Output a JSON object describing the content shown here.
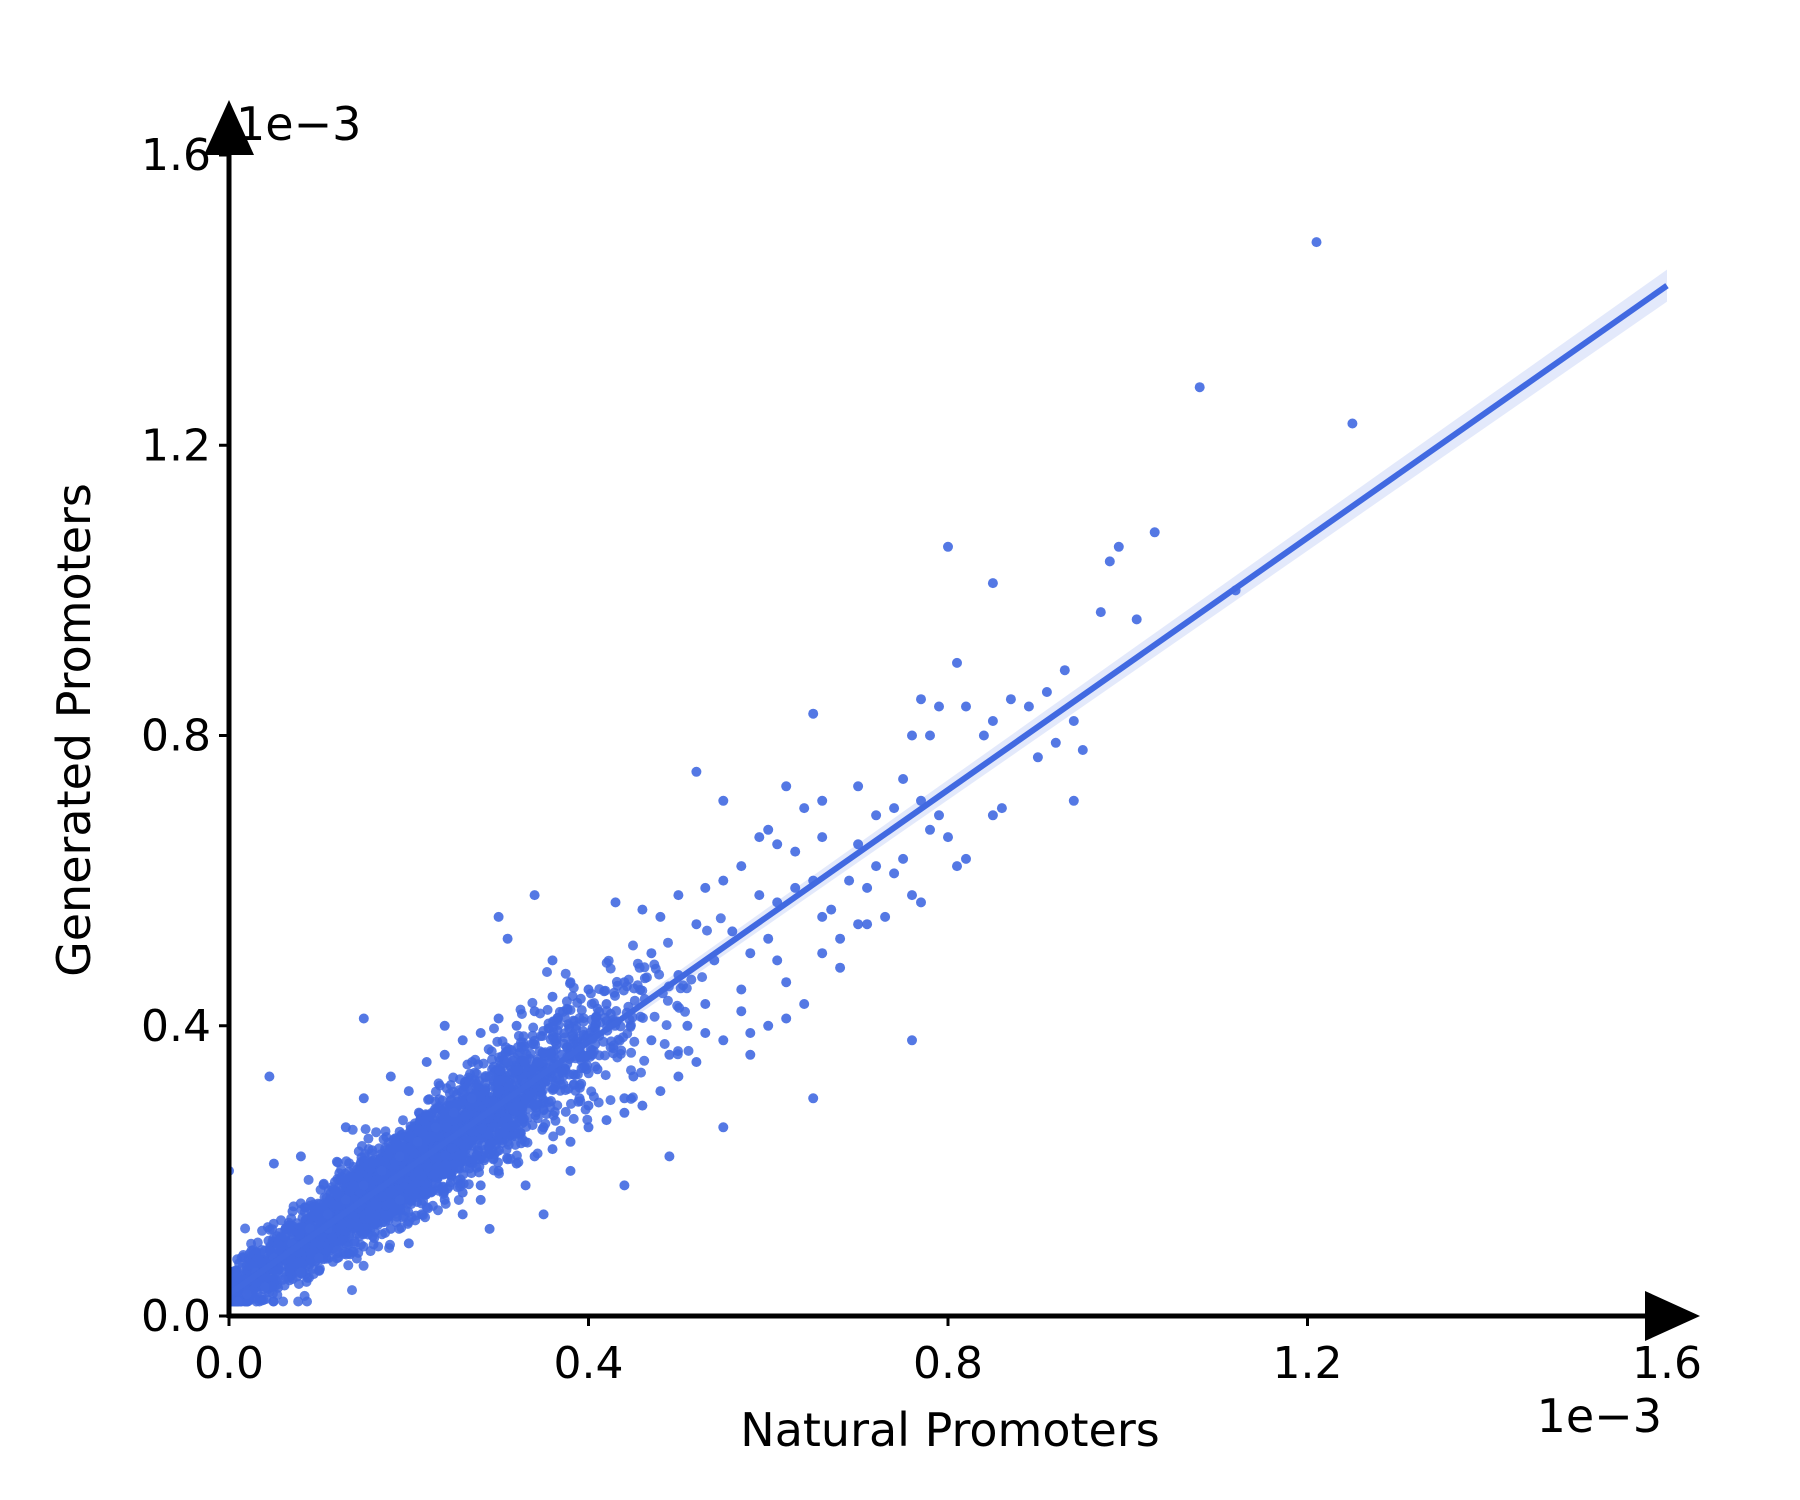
{
  "chart_data": {
    "type": "scatter",
    "title": "",
    "xlabel": "Natural Promoters",
    "ylabel": "Generated Promoters",
    "x_offset_label": "1e−3",
    "y_offset_label": "1e−3",
    "xlim": [
      0.0,
      1.6
    ],
    "ylim": [
      0.0,
      1.6
    ],
    "xticks": [
      0.0,
      0.4,
      0.8,
      1.2,
      1.6
    ],
    "yticks": [
      0.0,
      0.4,
      0.8,
      1.2,
      1.6
    ],
    "xtick_labels": [
      "0.0",
      "0.4",
      "0.8",
      "1.2",
      "1.6"
    ],
    "ytick_labels": [
      "0.0",
      "0.4",
      "0.8",
      "1.2",
      "1.6"
    ],
    "grid": false,
    "marker_color": "#4169E1",
    "fit_line": {
      "x": [
        0.0,
        1.6
      ],
      "y": [
        0.03,
        1.42
      ]
    },
    "points": [
      [
        1.21,
        1.48
      ],
      [
        1.08,
        1.28
      ],
      [
        1.25,
        1.23
      ],
      [
        1.12,
        1.0
      ],
      [
        1.03,
        1.08
      ],
      [
        0.8,
        1.06
      ],
      [
        0.99,
        1.06
      ],
      [
        0.98,
        1.04
      ],
      [
        0.85,
        1.01
      ],
      [
        0.97,
        0.97
      ],
      [
        1.01,
        0.96
      ],
      [
        0.81,
        0.9
      ],
      [
        0.93,
        0.89
      ],
      [
        0.91,
        0.86
      ],
      [
        0.89,
        0.84
      ],
      [
        0.87,
        0.85
      ],
      [
        0.85,
        0.82
      ],
      [
        0.94,
        0.82
      ],
      [
        0.84,
        0.8
      ],
      [
        0.92,
        0.79
      ],
      [
        0.9,
        0.77
      ],
      [
        0.95,
        0.78
      ],
      [
        0.94,
        0.71
      ],
      [
        0.77,
        0.85
      ],
      [
        0.79,
        0.84
      ],
      [
        0.82,
        0.84
      ],
      [
        0.78,
        0.8
      ],
      [
        0.76,
        0.8
      ],
      [
        0.65,
        0.83
      ],
      [
        0.52,
        0.75
      ],
      [
        0.55,
        0.71
      ],
      [
        0.62,
        0.73
      ],
      [
        0.64,
        0.7
      ],
      [
        0.66,
        0.71
      ],
      [
        0.7,
        0.73
      ],
      [
        0.72,
        0.69
      ],
      [
        0.74,
        0.7
      ],
      [
        0.79,
        0.69
      ],
      [
        0.75,
        0.74
      ],
      [
        0.77,
        0.71
      ],
      [
        0.86,
        0.7
      ],
      [
        0.85,
        0.69
      ],
      [
        0.6,
        0.67
      ],
      [
        0.59,
        0.66
      ],
      [
        0.61,
        0.65
      ],
      [
        0.63,
        0.64
      ],
      [
        0.66,
        0.66
      ],
      [
        0.7,
        0.65
      ],
      [
        0.78,
        0.67
      ],
      [
        0.8,
        0.66
      ],
      [
        0.72,
        0.62
      ],
      [
        0.75,
        0.63
      ],
      [
        0.81,
        0.62
      ],
      [
        0.82,
        0.63
      ],
      [
        0.57,
        0.62
      ],
      [
        0.55,
        0.6
      ],
      [
        0.53,
        0.59
      ],
      [
        0.5,
        0.58
      ],
      [
        0.46,
        0.56
      ],
      [
        0.48,
        0.55
      ],
      [
        0.59,
        0.58
      ],
      [
        0.61,
        0.57
      ],
      [
        0.63,
        0.59
      ],
      [
        0.65,
        0.6
      ],
      [
        0.67,
        0.56
      ],
      [
        0.69,
        0.6
      ],
      [
        0.74,
        0.61
      ],
      [
        0.76,
        0.58
      ],
      [
        0.77,
        0.57
      ],
      [
        0.7,
        0.54
      ],
      [
        0.71,
        0.54
      ],
      [
        0.73,
        0.55
      ],
      [
        0.68,
        0.52
      ],
      [
        0.66,
        0.5
      ],
      [
        0.6,
        0.52
      ],
      [
        0.58,
        0.5
      ],
      [
        0.56,
        0.53
      ],
      [
        0.52,
        0.54
      ],
      [
        0.54,
        0.49
      ],
      [
        0.5,
        0.47
      ],
      [
        0.47,
        0.5
      ],
      [
        0.44,
        0.46
      ],
      [
        0.42,
        0.43
      ],
      [
        0.4,
        0.45
      ],
      [
        0.38,
        0.46
      ],
      [
        0.36,
        0.49
      ],
      [
        0.34,
        0.58
      ],
      [
        0.43,
        0.57
      ],
      [
        0.3,
        0.55
      ],
      [
        0.31,
        0.52
      ],
      [
        0.62,
        0.46
      ],
      [
        0.64,
        0.43
      ],
      [
        0.6,
        0.4
      ],
      [
        0.57,
        0.42
      ],
      [
        0.55,
        0.38
      ],
      [
        0.58,
        0.36
      ],
      [
        0.52,
        0.35
      ],
      [
        0.5,
        0.33
      ],
      [
        0.48,
        0.31
      ],
      [
        0.46,
        0.29
      ],
      [
        0.44,
        0.28
      ],
      [
        0.42,
        0.27
      ],
      [
        0.4,
        0.26
      ],
      [
        0.38,
        0.24
      ],
      [
        0.36,
        0.23
      ],
      [
        0.34,
        0.22
      ],
      [
        0.32,
        0.21
      ],
      [
        0.3,
        0.2
      ],
      [
        0.28,
        0.18
      ],
      [
        0.26,
        0.17
      ],
      [
        0.24,
        0.16
      ],
      [
        0.22,
        0.15
      ],
      [
        0.2,
        0.13
      ],
      [
        0.18,
        0.12
      ],
      [
        0.16,
        0.11
      ],
      [
        0.14,
        0.1
      ],
      [
        0.12,
        0.09
      ],
      [
        0.1,
        0.08
      ],
      [
        0.08,
        0.06
      ],
      [
        0.06,
        0.05
      ],
      [
        0.04,
        0.04
      ],
      [
        0.02,
        0.03
      ],
      [
        0.01,
        0.02
      ],
      [
        0.045,
        0.33
      ],
      [
        0.0,
        0.2
      ],
      [
        0.05,
        0.21
      ],
      [
        0.08,
        0.22
      ],
      [
        0.13,
        0.26
      ],
      [
        0.15,
        0.3
      ],
      [
        0.18,
        0.33
      ],
      [
        0.2,
        0.31
      ],
      [
        0.22,
        0.35
      ],
      [
        0.24,
        0.36
      ],
      [
        0.26,
        0.38
      ],
      [
        0.28,
        0.39
      ],
      [
        0.3,
        0.41
      ],
      [
        0.32,
        0.4
      ],
      [
        0.34,
        0.42
      ],
      [
        0.36,
        0.44
      ],
      [
        0.15,
        0.41
      ],
      [
        0.24,
        0.4
      ],
      [
        0.47,
        0.38
      ],
      [
        0.51,
        0.4
      ],
      [
        0.53,
        0.43
      ],
      [
        0.65,
        0.3
      ],
      [
        0.76,
        0.38
      ],
      [
        0.55,
        0.26
      ],
      [
        0.49,
        0.22
      ],
      [
        0.44,
        0.18
      ],
      [
        0.35,
        0.14
      ],
      [
        0.29,
        0.12
      ],
      [
        0.2,
        0.1
      ],
      [
        0.44,
        0.3
      ],
      [
        0.41,
        0.34
      ],
      [
        0.39,
        0.3
      ],
      [
        0.37,
        0.36
      ],
      [
        0.33,
        0.32
      ],
      [
        0.31,
        0.35
      ],
      [
        0.29,
        0.33
      ],
      [
        0.27,
        0.3
      ],
      [
        0.25,
        0.28
      ],
      [
        0.23,
        0.26
      ],
      [
        0.21,
        0.24
      ],
      [
        0.19,
        0.22
      ],
      [
        0.17,
        0.2
      ],
      [
        0.15,
        0.18
      ],
      [
        0.13,
        0.16
      ],
      [
        0.11,
        0.14
      ],
      [
        0.09,
        0.12
      ],
      [
        0.07,
        0.1
      ],
      [
        0.05,
        0.08
      ],
      [
        0.03,
        0.06
      ],
      [
        0.28,
        0.16
      ],
      [
        0.33,
        0.18
      ],
      [
        0.38,
        0.2
      ],
      [
        0.26,
        0.14
      ],
      [
        0.19,
        0.16
      ],
      [
        0.11,
        0.12
      ],
      [
        0.35,
        0.26
      ],
      [
        0.4,
        0.29
      ],
      [
        0.45,
        0.33
      ],
      [
        0.49,
        0.36
      ],
      [
        0.53,
        0.39
      ],
      [
        0.57,
        0.45
      ],
      [
        0.61,
        0.49
      ],
      [
        0.66,
        0.55
      ],
      [
        0.71,
        0.59
      ],
      [
        0.68,
        0.48
      ],
      [
        0.62,
        0.41
      ],
      [
        0.58,
        0.39
      ]
    ]
  }
}
